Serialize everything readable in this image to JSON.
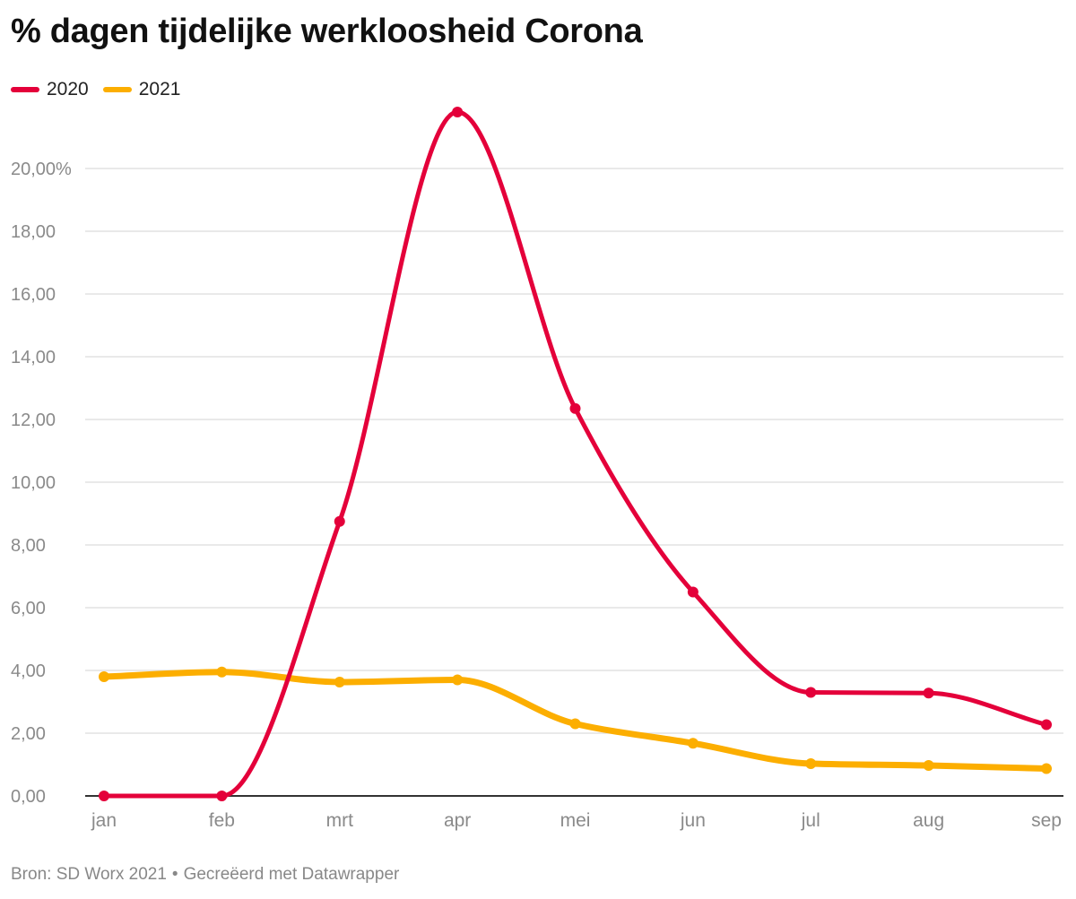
{
  "footer": {
    "source": "Bron: SD Worx 2021",
    "separator": "•",
    "credit": "Gecreëerd met Datawrapper"
  },
  "chart_data": {
    "type": "line",
    "title": "% dagen tijdelijke werkloosheid Corona",
    "categories": [
      "jan",
      "feb",
      "mrt",
      "apr",
      "mei",
      "jun",
      "jul",
      "aug",
      "sep"
    ],
    "series": [
      {
        "name": "2020",
        "color": "#e4003a",
        "values": [
          0.0,
          0.0,
          8.75,
          21.8,
          12.35,
          6.5,
          3.3,
          3.28,
          2.27
        ]
      },
      {
        "name": "2021",
        "color": "#fcae00",
        "values": [
          3.8,
          3.95,
          3.63,
          3.7,
          2.3,
          1.68,
          1.03,
          0.97,
          0.87
        ]
      }
    ],
    "ylim": [
      0,
      22
    ],
    "yticks": [
      0,
      2,
      4,
      6,
      8,
      10,
      12,
      14,
      16,
      18,
      20
    ],
    "ytick_labels": [
      "0,00",
      "2,00",
      "4,00",
      "6,00",
      "8,00",
      "10,00",
      "12,00",
      "14,00",
      "16,00",
      "18,00",
      "20,00%"
    ],
    "grid": true,
    "legend_position": "top-left"
  }
}
